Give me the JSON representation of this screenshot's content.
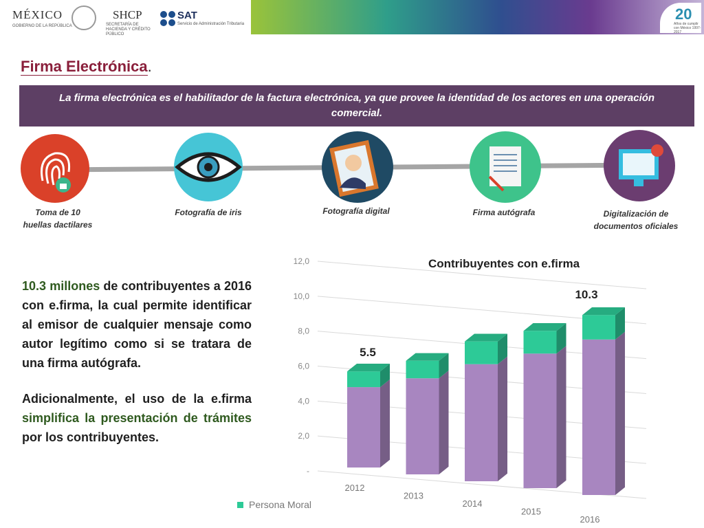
{
  "header": {
    "mexico": "MÉXICO",
    "gobierno": "GOBIERNO DE LA REPÚBLICA",
    "shcp": "SHCP",
    "shcp_sub": "SECRETARÍA DE HACIENDA Y CRÉDITO PÚBLICO",
    "sat": "SAT",
    "sat_sub": "Servicio de Administración Tributaria",
    "anniversary": "20",
    "anniversary_sub": "Años de cumplir con México 1997-2017"
  },
  "title": "Firma Electrónica",
  "title_dot": ".",
  "banner": "La firma electrónica es el habilitador de la factura electrónica, ya que provee la  identidad de los actores en una operación comercial.",
  "steps": [
    "Toma de 10 huellas dactilares",
    "Fotografía de iris",
    "Fotografía digital",
    "Firma autógrafa",
    "Digitalización de documentos oficiales"
  ],
  "paragraphs": [
    [
      "10.3 millones",
      "de contribuyentes a 2016 con e.firma, la cual permite identificar al emisor de cualquier mensaje como autor legítimo como si se tratara de una firma autógrafa."
    ],
    [
      "Adicionalmente, el uso de la e.firma",
      "simplifica la presentación de trámites",
      "por los contribuyentes."
    ]
  ],
  "chart_data": {
    "type": "bar",
    "stacked": true,
    "title": "Contribuyentes con e.firma",
    "categories": [
      "2012",
      "2013",
      "2014",
      "2015",
      "2016"
    ],
    "series": [
      {
        "color": "#a886c0",
        "values": [
          4.6,
          5.5,
          6.7,
          7.7,
          8.9
        ]
      },
      {
        "name": "Persona Moral",
        "color": "#2dca97",
        "values": [
          0.9,
          1.0,
          1.3,
          1.3,
          1.4
        ]
      }
    ],
    "annotations": [
      "5.5",
      "10.3"
    ],
    "ylim": [
      0,
      12
    ],
    "yticks": [
      {
        "value": 0,
        "label": "-"
      },
      {
        "value": 2,
        "label": "2,0"
      },
      {
        "value": 4,
        "label": "4,0"
      },
      {
        "value": 6,
        "label": "6,0"
      },
      {
        "value": 8,
        "label": "8,0"
      },
      {
        "value": 10,
        "label": "10,0"
      },
      {
        "value": 12,
        "label": "12,0"
      }
    ],
    "grid": true
  }
}
